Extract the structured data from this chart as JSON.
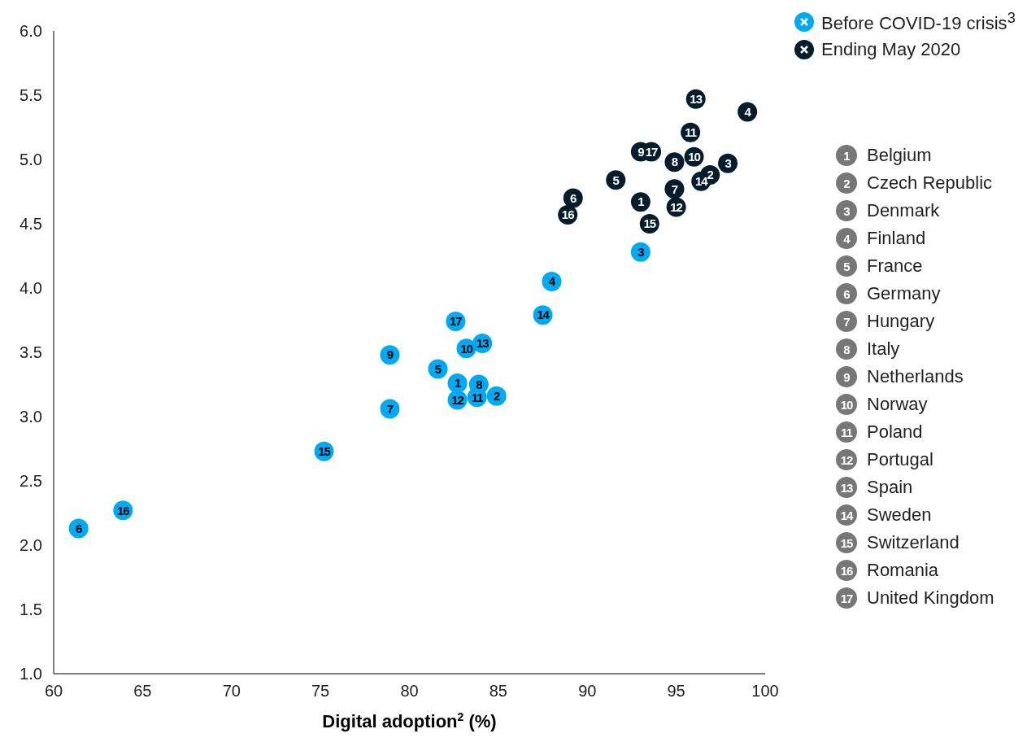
{
  "chart_data": {
    "type": "scatter",
    "xlabel": "Digital adoption$^{2}$ (%)",
    "xlim": [
      60,
      100
    ],
    "xticks": [
      60,
      65,
      70,
      75,
      80,
      85,
      90,
      95,
      100
    ],
    "ylim": [
      1,
      6
    ],
    "yticks": [
      {
        "value": 1,
        "label": "1.0"
      },
      {
        "value": 1.5,
        "label": "1.5"
      },
      {
        "value": 2,
        "label": "2.0"
      },
      {
        "value": 2.5,
        "label": "2.5"
      },
      {
        "value": 3,
        "label": "3.0"
      },
      {
        "value": 3.5,
        "label": "3.5"
      },
      {
        "value": 4,
        "label": "4.0"
      },
      {
        "value": 4.5,
        "label": "4.5"
      },
      {
        "value": 5,
        "label": "5.0"
      },
      {
        "value": 5.5,
        "label": "5.5"
      },
      {
        "value": 6,
        "label": "6.0"
      }
    ],
    "grid": false,
    "legend": "top right",
    "marker": "circle",
    "series": [
      {
        "name": "Before COVID-19 crisis$^{3}$",
        "color": "#00a9f4",
        "x": [
          61.4,
          63.9,
          75.2,
          78.9,
          78.9,
          81.6,
          82.7,
          82.7,
          83.8,
          83.9,
          84.9,
          83.2,
          84.1,
          82.6,
          87.5,
          88.0,
          93.0
        ],
        "values": [
          2.13,
          2.27,
          2.73,
          3.06,
          3.48,
          3.37,
          3.26,
          3.13,
          3.15,
          3.25,
          3.16,
          3.53,
          3.57,
          3.74,
          3.79,
          4.05,
          4.28
        ]
      },
      {
        "name": "Ending May 2020",
        "color": "#051c2c",
        "x": [
          96.1,
          99.0,
          95.8,
          93.0,
          93.6,
          94.9,
          96.0,
          97.9,
          96.9,
          96.4,
          91.6,
          94.9,
          93.0,
          95.0,
          89.2,
          88.9,
          93.5
        ],
        "values": [
          5.47,
          5.37,
          5.21,
          5.06,
          5.06,
          4.98,
          5.02,
          4.97,
          4.88,
          4.83,
          4.84,
          4.77,
          4.67,
          4.63,
          4.7,
          4.57,
          4.5
        ]
      }
    ],
    "annotations": [
      {
        "text": "6",
        "x": 61.4,
        "y": 2.13
      },
      {
        "text": "16",
        "x": 63.9,
        "y": 2.27
      },
      {
        "text": "15",
        "x": 75.2,
        "y": 2.73
      },
      {
        "text": "7",
        "x": 78.9,
        "y": 3.06
      },
      {
        "text": "9",
        "x": 78.9,
        "y": 3.48
      },
      {
        "text": "5",
        "x": 81.6,
        "y": 3.37
      },
      {
        "text": "1",
        "x": 82.7,
        "y": 3.26
      },
      {
        "text": "12",
        "x": 82.7,
        "y": 3.13
      },
      {
        "text": "11",
        "x": 83.8,
        "y": 3.15
      },
      {
        "text": "8",
        "x": 83.9,
        "y": 3.25
      },
      {
        "text": "2",
        "x": 84.9,
        "y": 3.16
      },
      {
        "text": "10",
        "x": 83.2,
        "y": 3.53
      },
      {
        "text": "13",
        "x": 84.1,
        "y": 3.57
      },
      {
        "text": "17",
        "x": 82.6,
        "y": 3.74
      },
      {
        "text": "14",
        "x": 87.5,
        "y": 3.79
      },
      {
        "text": "4",
        "x": 88.0,
        "y": 4.05
      },
      {
        "text": "3",
        "x": 93.0,
        "y": 4.28
      },
      {
        "text": "13",
        "x": 96.1,
        "y": 5.47
      },
      {
        "text": "4",
        "x": 99.0,
        "y": 5.37
      },
      {
        "text": "11",
        "x": 95.8,
        "y": 5.21
      },
      {
        "text": "9",
        "x": 93.0,
        "y": 5.06
      },
      {
        "text": "17",
        "x": 93.6,
        "y": 5.06
      },
      {
        "text": "8",
        "x": 94.9,
        "y": 4.98
      },
      {
        "text": "10",
        "x": 96.0,
        "y": 5.02
      },
      {
        "text": "3",
        "x": 97.9,
        "y": 4.97
      },
      {
        "text": "2",
        "x": 96.9,
        "y": 4.88
      },
      {
        "text": "14",
        "x": 96.4,
        "y": 4.83
      },
      {
        "text": "5",
        "x": 91.6,
        "y": 4.84
      },
      {
        "text": "7",
        "x": 94.9,
        "y": 4.77
      },
      {
        "text": "1",
        "x": 93.0,
        "y": 4.67
      },
      {
        "text": "12",
        "x": 95.0,
        "y": 4.63
      },
      {
        "text": "6",
        "x": 89.2,
        "y": 4.7
      },
      {
        "text": "16",
        "x": 88.9,
        "y": 4.57
      },
      {
        "text": "15",
        "x": 93.5,
        "y": 4.5
      },
      "1",
      "Belgium",
      "2",
      "Czech Republic",
      "3",
      "Denmark",
      "4",
      "Finland",
      "5",
      "France",
      "6",
      "Germany",
      "7",
      "Hungary",
      "8",
      "Italy",
      "9",
      "Netherlands",
      "10",
      "Norway",
      "11",
      "Poland",
      "12",
      "Portugal",
      "13",
      "Spain",
      "14",
      "Sweden",
      "15",
      "Switzerland",
      "16",
      "Romania",
      "17",
      "United Kingdom"
    ]
  }
}
